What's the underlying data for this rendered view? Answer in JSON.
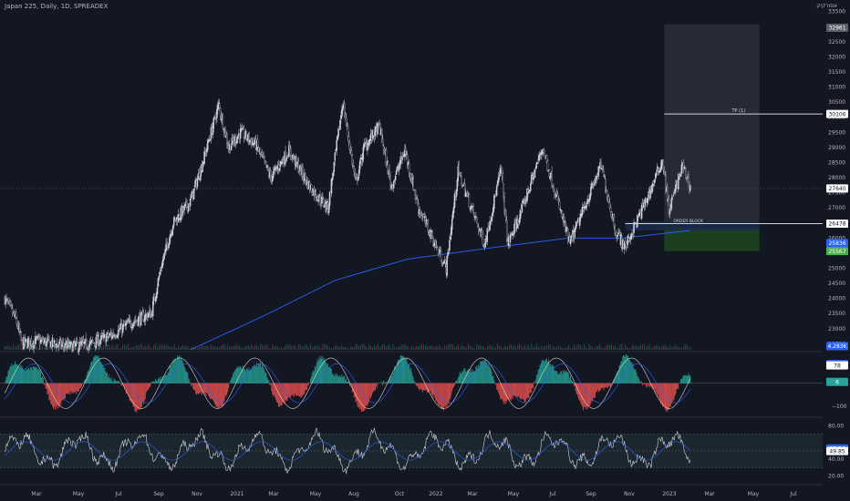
{
  "header": {
    "title": "Japan 225, Daily, 1D, SPREADEX",
    "corner_text": "אסורקיק"
  },
  "colors": {
    "background": "#131722",
    "candle": "#d1d4dc",
    "ma_line": "#2962ff",
    "tp_line": "#d1d4dc",
    "profit_zone": "#363a45",
    "stop_zone": "#1e4620",
    "order_block": "#1c2a4a",
    "hist_up": "#26a69a",
    "hist_down": "#ef5350",
    "oscillator_line": "#d1d4dc"
  },
  "chart_data": [
    {
      "type": "candlestick",
      "title": "Japan 225, Daily, 1D, SPREADEX",
      "x_tick_labels": [
        "Mar",
        "May",
        "Jul",
        "Sep",
        "Nov",
        "2021",
        "Mar",
        "May",
        "Aug",
        "Oct",
        "2022",
        "Mar",
        "May",
        "Jul",
        "Sep",
        "Nov",
        "2023",
        "Mar",
        "May",
        "Jul",
        "Sep",
        "Nov"
      ],
      "y_tick_labels": [
        "33500",
        "33000",
        "32500",
        "32000",
        "31500",
        "31000",
        "30500",
        "30000",
        "29500",
        "29000",
        "28500",
        "28000",
        "27500",
        "27000",
        "26500",
        "26000",
        "25500",
        "25000",
        "24500",
        "24000",
        "23500",
        "23000",
        "22500"
      ],
      "ylim": [
        22300,
        33700
      ],
      "x_range": [
        "2020-02",
        "2023-11"
      ],
      "price_path": [
        {
          "x": "2020-02-20",
          "y": 24000
        },
        {
          "x": "2020-03-10",
          "y": 23300
        },
        {
          "x": "2020-03-20",
          "y": 22500
        },
        {
          "x": "2020-04-15",
          "y": 22600
        },
        {
          "x": "2020-06-10",
          "y": 22400
        },
        {
          "x": "2020-07-15",
          "y": 22500
        },
        {
          "x": "2020-08-20",
          "y": 22800
        },
        {
          "x": "2020-09-20",
          "y": 23200
        },
        {
          "x": "2020-10-25",
          "y": 23500
        },
        {
          "x": "2020-11-10",
          "y": 25000
        },
        {
          "x": "2020-12-01",
          "y": 26500
        },
        {
          "x": "2020-12-30",
          "y": 27200
        },
        {
          "x": "2021-01-20",
          "y": 28500
        },
        {
          "x": "2021-02-16",
          "y": 30400
        },
        {
          "x": "2021-03-05",
          "y": 29000
        },
        {
          "x": "2021-03-25",
          "y": 29500
        },
        {
          "x": "2021-04-20",
          "y": 29100
        },
        {
          "x": "2021-05-15",
          "y": 28000
        },
        {
          "x": "2021-06-15",
          "y": 28900
        },
        {
          "x": "2021-07-20",
          "y": 27700
        },
        {
          "x": "2021-08-20",
          "y": 27000
        },
        {
          "x": "2021-09-14",
          "y": 30500
        },
        {
          "x": "2021-10-06",
          "y": 27800
        },
        {
          "x": "2021-10-20",
          "y": 29000
        },
        {
          "x": "2021-11-15",
          "y": 29700
        },
        {
          "x": "2021-12-05",
          "y": 27700
        },
        {
          "x": "2021-12-28",
          "y": 28900
        },
        {
          "x": "2022-01-20",
          "y": 27000
        },
        {
          "x": "2022-03-08",
          "y": 25000
        },
        {
          "x": "2022-03-28",
          "y": 28200
        },
        {
          "x": "2022-05-12",
          "y": 25800
        },
        {
          "x": "2022-06-09",
          "y": 28300
        },
        {
          "x": "2022-06-20",
          "y": 25800
        },
        {
          "x": "2022-07-10",
          "y": 26700
        },
        {
          "x": "2022-08-18",
          "y": 29000
        },
        {
          "x": "2022-10-03",
          "y": 25800
        },
        {
          "x": "2022-11-25",
          "y": 28400
        },
        {
          "x": "2022-12-20",
          "y": 26200
        },
        {
          "x": "2023-01-05",
          "y": 25700
        },
        {
          "x": "2023-02-15",
          "y": 27500
        },
        {
          "x": "2023-03-09",
          "y": 28600
        },
        {
          "x": "2023-03-20",
          "y": 26900
        },
        {
          "x": "2023-04-12",
          "y": 28400
        },
        {
          "x": "2023-04-25",
          "y": 27700
        }
      ],
      "moving_average": [
        {
          "x": "2020-12-30",
          "y": 22300
        },
        {
          "x": "2021-05-01",
          "y": 23400
        },
        {
          "x": "2021-09-01",
          "y": 24600
        },
        {
          "x": "2022-01-01",
          "y": 25300
        },
        {
          "x": "2022-06-01",
          "y": 25700
        },
        {
          "x": "2022-10-01",
          "y": 26000
        },
        {
          "x": "2023-01-01",
          "y": 26000
        },
        {
          "x": "2023-04-25",
          "y": 26250
        }
      ],
      "position_tool": {
        "x_start": "2023-03-12",
        "x_end": "2023-08-20",
        "top": 33080,
        "take_profit": 30106,
        "entry": 26478,
        "stop_zone_top": 26340,
        "stop_zone_bottom": 25567
      },
      "order_block": {
        "x_start": "2023-01-05",
        "top": 26550,
        "bottom": 26250
      },
      "annotations": {
        "take_profit_label": "TP (1)",
        "order_block_label": "ORDER BLOCK"
      },
      "price_tags": [
        {
          "value": "32961",
          "bg": "#5d606b",
          "fg": "#ffffff",
          "y": 32961
        },
        {
          "value": "30106",
          "bg": "#ffffff",
          "fg": "#131722",
          "y": 30106
        },
        {
          "value": "27640",
          "bg": "#ffffff",
          "fg": "#131722",
          "y": 27640
        },
        {
          "value": "26478",
          "bg": "#ffffff",
          "fg": "#131722",
          "y": 26478
        },
        {
          "value": "25836",
          "bg": "#2962ff",
          "fg": "#ffffff",
          "y": 25836
        },
        {
          "value": "25567",
          "bg": "#4caf50",
          "fg": "#ffffff",
          "y": 25567
        }
      ]
    },
    {
      "type": "bar",
      "title": "",
      "volume_tag": {
        "value": "4.283K",
        "bg": "#2962ff",
        "fg": "#ffffff"
      }
    },
    {
      "type": "bar",
      "title": "",
      "y_tick_labels": [
        "−100"
      ],
      "ylim": [
        -140,
        130
      ],
      "price_tags": [
        {
          "value": "84",
          "bg": "#2962ff",
          "fg": "#ffffff",
          "y": 84
        },
        {
          "value": "78",
          "bg": "#ffffff",
          "fg": "#131722",
          "y": 78
        },
        {
          "value": "6",
          "bg": "#26a69a",
          "fg": "#ffffff",
          "y": 6
        }
      ]
    },
    {
      "type": "line",
      "title": "",
      "y_tick_labels": [
        "80.00",
        "40.00",
        "20.00"
      ],
      "ylim": [
        12,
        88
      ],
      "band": [
        30,
        70
      ],
      "price_tags": [
        {
          "value": "52.94",
          "bg": "#2962ff",
          "fg": "#ffffff",
          "y": 52.94
        },
        {
          "value": "49.85",
          "bg": "#ffffff",
          "fg": "#131722",
          "y": 49.85
        }
      ]
    }
  ]
}
